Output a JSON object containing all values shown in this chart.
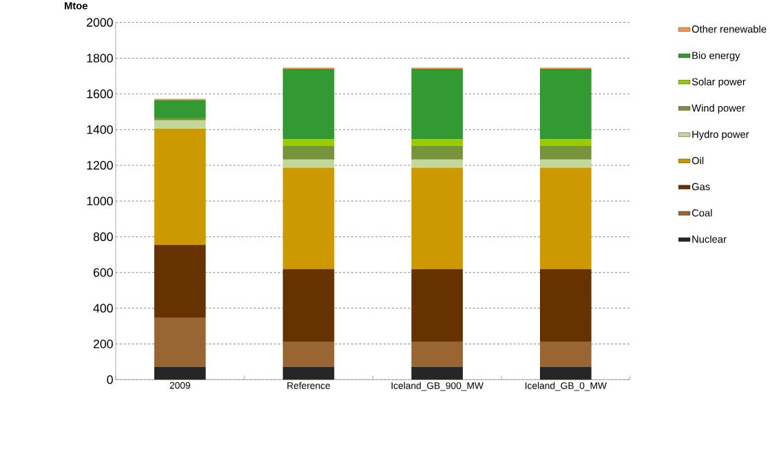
{
  "chart_data": {
    "type": "bar",
    "stacked": true,
    "ylabel": "Mtoe",
    "categories": [
      "2009",
      "Reference",
      "Iceland_GB_900_MW",
      "Iceland_GB_0_MW"
    ],
    "series": [
      {
        "name": "Nuclear",
        "color": "#262626",
        "values": [
          73,
          73,
          73,
          73
        ]
      },
      {
        "name": "Coal",
        "color": "#996633",
        "values": [
          272,
          137,
          137,
          137
        ]
      },
      {
        "name": "Gas",
        "color": "#663300",
        "values": [
          410,
          409,
          409,
          409
        ]
      },
      {
        "name": "Oil",
        "color": "#cc9900",
        "values": [
          650,
          568,
          568,
          568
        ]
      },
      {
        "name": "Hydro power",
        "color": "#c4d79b",
        "values": [
          47,
          45,
          45,
          45
        ]
      },
      {
        "name": "Wind power",
        "color": "#77933c",
        "values": [
          14,
          76,
          76,
          76
        ]
      },
      {
        "name": "Solar power",
        "color": "#99cc00",
        "values": [
          0,
          38,
          38,
          38
        ]
      },
      {
        "name": "Bio energy",
        "color": "#339933",
        "values": [
          100,
          394,
          394,
          394
        ]
      },
      {
        "name": "Other renewable",
        "color": "#f79646",
        "values": [
          6,
          7,
          7,
          7
        ]
      }
    ],
    "ylim": [
      0,
      2000
    ],
    "yticks": [
      0,
      200,
      400,
      600,
      800,
      1000,
      1200,
      1400,
      1600,
      1800,
      2000
    ],
    "grid": "y",
    "legend": "right"
  }
}
